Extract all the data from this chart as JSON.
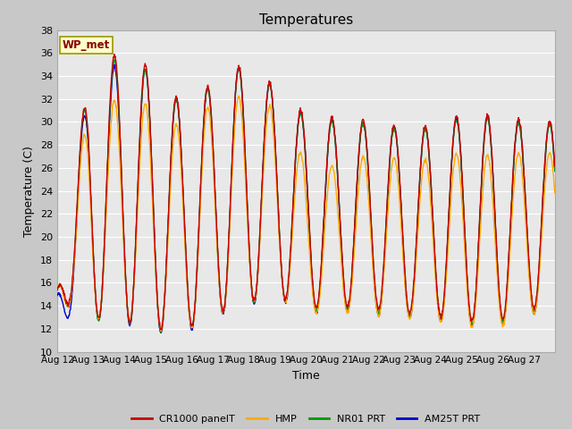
{
  "title": "Temperatures",
  "xlabel": "Time",
  "ylabel": "Temperature (C)",
  "ylim": [
    10,
    38
  ],
  "yticks": [
    10,
    12,
    14,
    16,
    18,
    20,
    22,
    24,
    26,
    28,
    30,
    32,
    34,
    36,
    38
  ],
  "series_colors": [
    "#cc0000",
    "#ffaa00",
    "#009900",
    "#0000cc"
  ],
  "series_labels": [
    "CR1000 panelT",
    "HMP",
    "NR01 PRT",
    "AM25T PRT"
  ],
  "annotation_text": "WP_met",
  "annotation_bg": "#ffffcc",
  "annotation_border": "#999900",
  "annotation_text_color": "#880000",
  "days": [
    "Aug 12",
    "Aug 13",
    "Aug 14",
    "Aug 15",
    "Aug 16",
    "Aug 17",
    "Aug 18",
    "Aug 19",
    "Aug 20",
    "Aug 21",
    "Aug 22",
    "Aug 23",
    "Aug 24",
    "Aug 25",
    "Aug 26",
    "Aug 27"
  ],
  "num_days": 16,
  "pts_per_day": 96,
  "day_max_cr1000": [
    15.5,
    33.8,
    36.2,
    34.7,
    31.7,
    33.4,
    35.1,
    33.1,
    30.6,
    30.3,
    30.1,
    29.6,
    29.6,
    30.6,
    30.6,
    30.1
  ],
  "day_min_cr1000": [
    14.8,
    13.0,
    12.8,
    12.0,
    11.8,
    13.3,
    14.2,
    15.0,
    13.8,
    14.0,
    13.8,
    13.5,
    13.2,
    12.8,
    12.5,
    13.8
  ],
  "day_max_hmp": [
    16.0,
    31.0,
    32.1,
    31.5,
    29.5,
    31.6,
    32.3,
    31.2,
    26.5,
    26.1,
    27.2,
    26.8,
    26.7,
    27.3,
    27.1,
    27.3
  ],
  "day_min_hmp": [
    14.5,
    13.0,
    13.1,
    12.1,
    11.6,
    13.1,
    14.1,
    15.0,
    13.3,
    13.5,
    13.2,
    13.0,
    12.8,
    12.3,
    11.8,
    13.3
  ],
  "day_max_nr01": [
    15.7,
    33.5,
    35.8,
    34.3,
    31.4,
    33.1,
    34.9,
    33.0,
    30.3,
    30.0,
    29.8,
    29.3,
    29.4,
    30.3,
    30.3,
    29.8
  ],
  "day_min_nr01": [
    14.6,
    12.8,
    12.7,
    11.9,
    11.6,
    13.2,
    14.0,
    14.9,
    13.5,
    13.7,
    13.5,
    13.2,
    13.0,
    12.6,
    12.2,
    13.5
  ],
  "day_max_am25t": [
    15.6,
    33.0,
    35.2,
    34.5,
    31.6,
    33.2,
    35.0,
    33.0,
    30.4,
    30.1,
    29.9,
    29.5,
    29.5,
    30.4,
    30.4,
    29.9
  ],
  "day_min_am25t": [
    13.0,
    12.8,
    12.6,
    11.8,
    11.4,
    13.0,
    13.9,
    14.8,
    13.3,
    13.6,
    13.3,
    13.0,
    12.8,
    12.4,
    12.0,
    13.3
  ],
  "fig_width": 6.4,
  "fig_height": 4.8,
  "dpi": 100
}
